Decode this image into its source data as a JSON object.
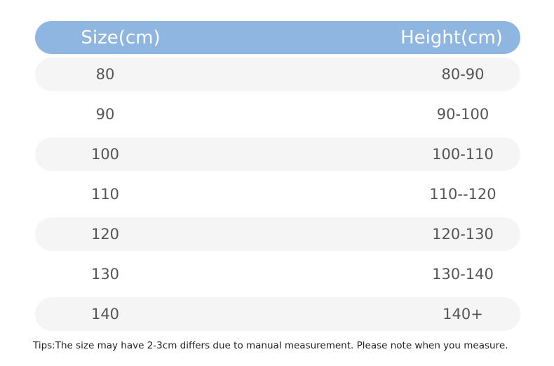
{
  "table": {
    "headers": [
      "Size(cm)",
      "Height(cm)"
    ],
    "rows": [
      [
        "80",
        "80-90"
      ],
      [
        "90",
        "90-100"
      ],
      [
        "100",
        "100-110"
      ],
      [
        "110",
        "110--120"
      ],
      [
        "120",
        "120-130"
      ],
      [
        "130",
        "130-140"
      ],
      [
        "140",
        "140+"
      ]
    ]
  },
  "tips": "Tips:The size may have 2-3cm differs due to manual measurement. Please note when you measure.",
  "colors": {
    "header": "#8fb6e1",
    "row_shade": "#f5f5f5"
  }
}
